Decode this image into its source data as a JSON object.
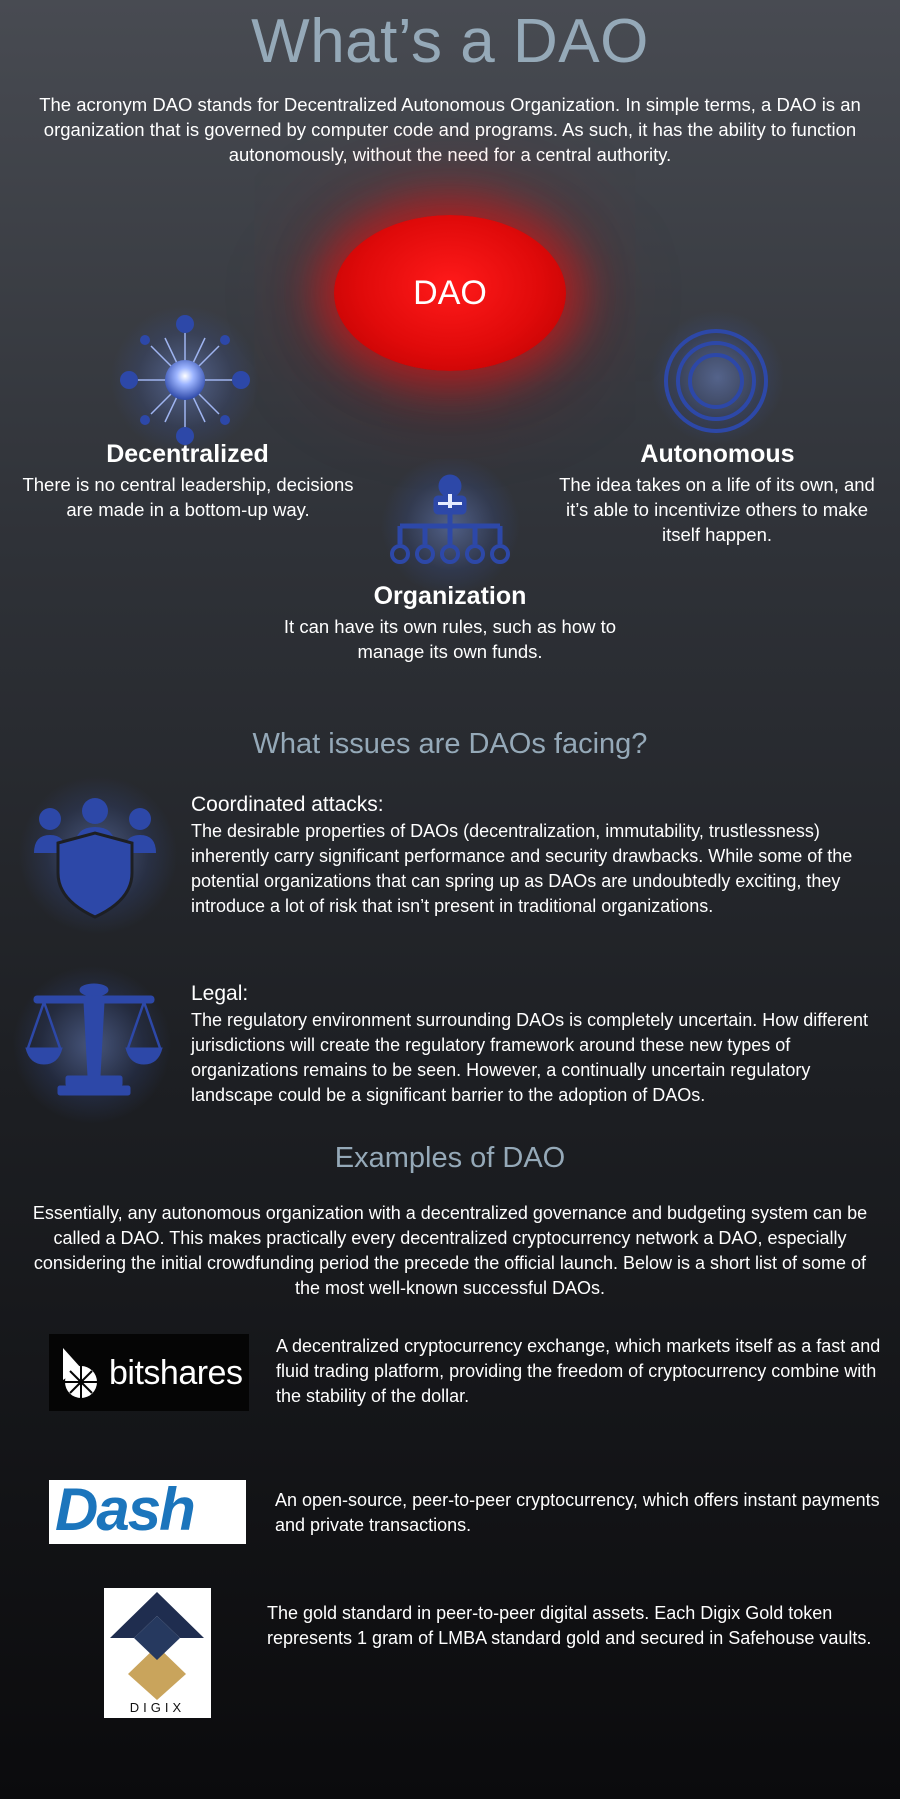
{
  "header": {
    "title": "What’s a DAO",
    "intro": "The acronym DAO stands for Decentralized Autonomous Organization. In simple terms, a DAO is an organization that is governed by computer code and programs. As such, it has the ability to function autonomously, without the need for a central authority."
  },
  "diagram": {
    "center_label": "DAO",
    "decentralized": {
      "heading": "Decentralized",
      "text": "There is no central leadership, decisions are made in a bottom-up way.",
      "icon": "network-hub-icon"
    },
    "autonomous": {
      "heading": "Autonomous",
      "text": "The idea takes on a life of its own, and it’s able to incentivize others to make itself happen.",
      "icon": "concentric-circles-icon"
    },
    "organization": {
      "heading": "Organization",
      "text": "It can have its own rules, such as how to manage its own funds.",
      "icon": "org-chart-icon"
    }
  },
  "issues": {
    "heading": "What issues are DAOs facing?",
    "items": [
      {
        "title": "Coordinated attacks:",
        "text": "The desirable properties of DAOs (decentralization, immutability, trustlessness) inherently carry significant performance and security drawbacks. While some of the potential organizations that can spring up as DAOs are undoubtedly exciting, they introduce a lot of risk that isn’t present in traditional organizations.",
        "icon": "shield-group-icon"
      },
      {
        "title": "Legal:",
        "text": "The regulatory environment surrounding DAOs is completely uncertain. How different jurisdictions will create the regulatory framework around these new types of organizations remains to be seen. However, a continually uncertain regulatory landscape could be a significant barrier to the adoption of DAOs.",
        "icon": "scales-icon"
      }
    ]
  },
  "examples": {
    "heading": "Examples of DAO",
    "intro": "Essentially, any autonomous organization with a decentralized governance and budgeting system can be called a DAO. This makes practically every decentralized cryptocurrency network a DAO, especially considering the initial crowdfunding period the precede the official launch. Below is a short list of some of the most well-known successful DAOs.",
    "items": [
      {
        "logo_text": "bitshares",
        "text": "A decentralized cryptocurrency exchange, which markets itself as a fast and fluid trading platform, providing the freedom of cryptocurrency combine with the stability of the dollar."
      },
      {
        "logo_text": "Dash",
        "text": "An open-source, peer-to-peer cryptocurrency, which offers instant payments and private transactions."
      },
      {
        "logo_text": "DIGIX",
        "text": "The gold standard in peer-to-peer digital assets. Each Digix Gold token represents 1 gram of LMBA standard gold and secured in Safehouse vaults."
      }
    ]
  },
  "colors": {
    "accent_title": "#95a9b8",
    "dao_red": "#e00a0a",
    "icon_blue": "#2d48a8",
    "dash_blue": "#1c75bc",
    "digix_navy": "#1f2d4f",
    "digix_gold": "#c9a45c"
  }
}
